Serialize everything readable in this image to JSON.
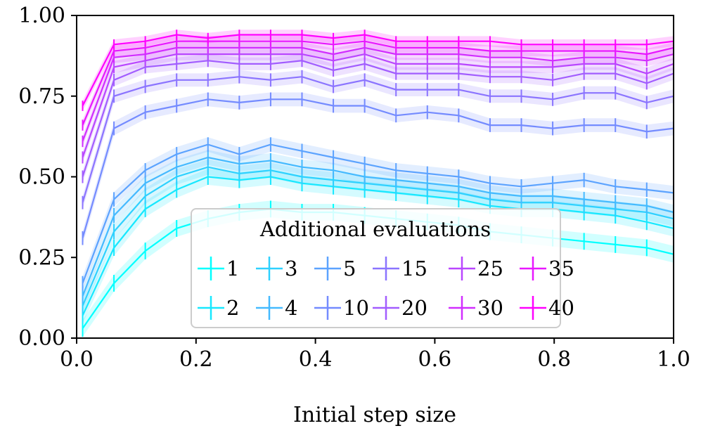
{
  "chart_data": {
    "type": "line",
    "title": "",
    "xlabel": "Initial step size",
    "ylabel": "",
    "xlim": [
      0.0,
      1.0
    ],
    "ylim": [
      0.0,
      1.0
    ],
    "x_ticks": [
      "0.0",
      "0.2",
      "0.4",
      "0.6",
      "0.8",
      "1.0"
    ],
    "y_ticks": [
      "0.00",
      "0.25",
      "0.50",
      "0.75",
      "1.00"
    ],
    "grid": false,
    "legend": {
      "title": "Additional evaluations",
      "placement": "bottom-center",
      "columns": 6
    },
    "x": [
      0.01,
      0.0625,
      0.115,
      0.1675,
      0.22,
      0.2725,
      0.325,
      0.3775,
      0.43,
      0.4825,
      0.535,
      0.5875,
      0.64,
      0.6925,
      0.745,
      0.7975,
      0.85,
      0.9025,
      0.955,
      1.0
    ],
    "series": [
      {
        "name": "1",
        "color": "#00ffff",
        "values": [
          0.03,
          0.17,
          0.27,
          0.34,
          0.37,
          0.39,
          0.4,
          0.39,
          0.39,
          0.38,
          0.37,
          0.36,
          0.35,
          0.33,
          0.32,
          0.31,
          0.3,
          0.29,
          0.28,
          0.26
        ]
      },
      {
        "name": "2",
        "color": "#17e8ff",
        "values": [
          0.07,
          0.28,
          0.4,
          0.46,
          0.5,
          0.49,
          0.5,
          0.48,
          0.47,
          0.46,
          0.45,
          0.44,
          0.43,
          0.41,
          0.4,
          0.4,
          0.39,
          0.38,
          0.36,
          0.34
        ]
      },
      {
        "name": "3",
        "color": "#2ed1ff",
        "values": [
          0.1,
          0.33,
          0.44,
          0.5,
          0.53,
          0.51,
          0.52,
          0.5,
          0.49,
          0.48,
          0.47,
          0.46,
          0.45,
          0.43,
          0.42,
          0.42,
          0.41,
          0.4,
          0.39,
          0.37
        ]
      },
      {
        "name": "4",
        "color": "#45baff",
        "values": [
          0.13,
          0.38,
          0.48,
          0.53,
          0.56,
          0.54,
          0.55,
          0.53,
          0.52,
          0.5,
          0.49,
          0.48,
          0.47,
          0.45,
          0.44,
          0.44,
          0.43,
          0.42,
          0.41,
          0.39
        ]
      },
      {
        "name": "5",
        "color": "#5ca3ff",
        "values": [
          0.17,
          0.43,
          0.52,
          0.57,
          0.6,
          0.57,
          0.6,
          0.58,
          0.56,
          0.54,
          0.52,
          0.51,
          0.5,
          0.48,
          0.47,
          0.48,
          0.49,
          0.47,
          0.46,
          0.45
        ]
      },
      {
        "name": "10",
        "color": "#748bff",
        "values": [
          0.31,
          0.65,
          0.7,
          0.72,
          0.74,
          0.73,
          0.74,
          0.74,
          0.72,
          0.72,
          0.69,
          0.7,
          0.69,
          0.66,
          0.66,
          0.65,
          0.66,
          0.66,
          0.64,
          0.65
        ]
      },
      {
        "name": "15",
        "color": "#8b74ff",
        "values": [
          0.42,
          0.75,
          0.78,
          0.8,
          0.8,
          0.81,
          0.8,
          0.81,
          0.78,
          0.8,
          0.77,
          0.77,
          0.77,
          0.75,
          0.75,
          0.74,
          0.76,
          0.76,
          0.73,
          0.75
        ]
      },
      {
        "name": "20",
        "color": "#a25dff",
        "values": [
          0.5,
          0.8,
          0.84,
          0.85,
          0.86,
          0.85,
          0.85,
          0.86,
          0.83,
          0.85,
          0.82,
          0.82,
          0.82,
          0.81,
          0.81,
          0.8,
          0.82,
          0.82,
          0.79,
          0.82
        ]
      },
      {
        "name": "25",
        "color": "#b946ff",
        "values": [
          0.56,
          0.84,
          0.86,
          0.88,
          0.88,
          0.88,
          0.88,
          0.88,
          0.86,
          0.88,
          0.85,
          0.85,
          0.85,
          0.84,
          0.84,
          0.84,
          0.85,
          0.85,
          0.82,
          0.85
        ]
      },
      {
        "name": "30",
        "color": "#d12eff",
        "values": [
          0.61,
          0.87,
          0.88,
          0.9,
          0.9,
          0.9,
          0.9,
          0.9,
          0.88,
          0.9,
          0.88,
          0.88,
          0.88,
          0.87,
          0.87,
          0.86,
          0.87,
          0.87,
          0.86,
          0.88
        ]
      },
      {
        "name": "35",
        "color": "#e817ff",
        "values": [
          0.66,
          0.89,
          0.9,
          0.92,
          0.92,
          0.92,
          0.92,
          0.92,
          0.91,
          0.92,
          0.9,
          0.9,
          0.9,
          0.89,
          0.89,
          0.89,
          0.89,
          0.89,
          0.88,
          0.9
        ]
      },
      {
        "name": "40",
        "color": "#ff00ff",
        "values": [
          0.72,
          0.91,
          0.92,
          0.94,
          0.93,
          0.94,
          0.94,
          0.94,
          0.93,
          0.94,
          0.92,
          0.92,
          0.92,
          0.92,
          0.91,
          0.91,
          0.91,
          0.91,
          0.91,
          0.92
        ]
      }
    ]
  }
}
